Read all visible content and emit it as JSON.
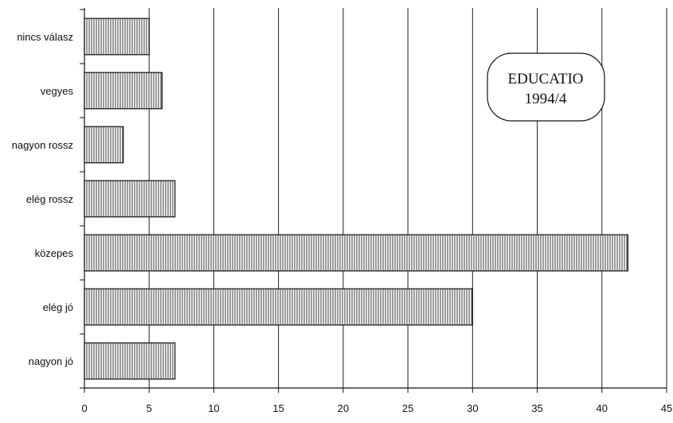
{
  "chart_data": {
    "type": "bar",
    "orientation": "horizontal",
    "categories": [
      "nincs válasz",
      "vegyes",
      "nagyon rossz",
      "elég rossz",
      "közepes",
      "elég jó",
      "nagyon jó"
    ],
    "values": [
      5,
      6,
      3,
      7,
      42,
      30,
      7
    ],
    "title": "",
    "xlabel": "",
    "ylabel": "",
    "xlim": [
      0,
      45
    ],
    "xticks": [
      0,
      5,
      10,
      15,
      20,
      25,
      30,
      35,
      40,
      45
    ],
    "grid": "vertical",
    "legend": "none",
    "bar_fill": "vertical-hatch"
  },
  "stamp": {
    "line1": "EDUCATIO",
    "line2": "1994/4"
  }
}
